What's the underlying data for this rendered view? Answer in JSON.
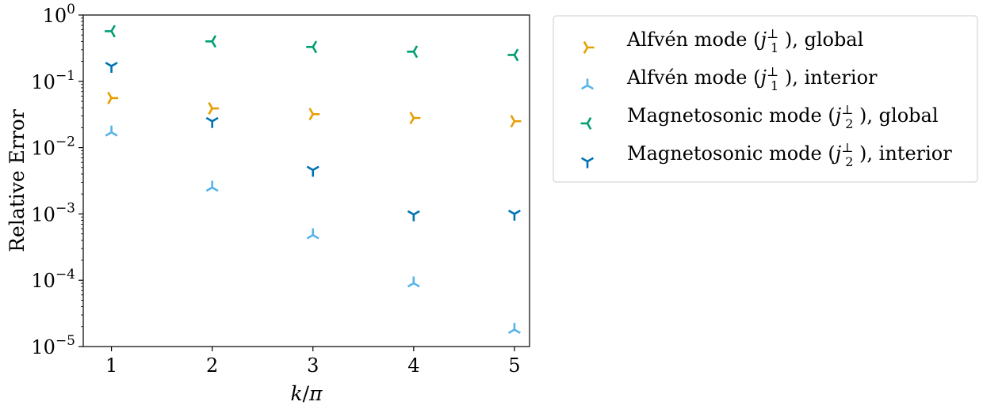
{
  "chart_data": {
    "type": "scatter",
    "xlabel": "k/π",
    "ylabel": "Relative Error",
    "xlim": [
      0.72,
      5.15
    ],
    "ylim": [
      1e-05,
      1
    ],
    "yscale": "log",
    "x_ticks": [
      1,
      2,
      3,
      4,
      5
    ],
    "y_ticks": [
      {
        "value": 1,
        "base": "10",
        "exp": "0"
      },
      {
        "value": 0.1,
        "base": "10",
        "exp": "−1"
      },
      {
        "value": 0.01,
        "base": "10",
        "exp": "−2"
      },
      {
        "value": 0.001,
        "base": "10",
        "exp": "−3"
      },
      {
        "value": 0.0001,
        "base": "10",
        "exp": "−4"
      },
      {
        "value": 1e-05,
        "base": "10",
        "exp": "−5"
      }
    ],
    "grid": false,
    "legend_position": "outside-right-top",
    "series": [
      {
        "name": "Alfvén mode (j₁^⊥), global",
        "legend": {
          "pre": "Alfvén mode (",
          "sub": "1",
          "post": " ), global"
        },
        "marker": "tri-right",
        "color": "#E69F00",
        "x": [
          1,
          2,
          3,
          4,
          5
        ],
        "y": [
          0.056,
          0.039,
          0.032,
          0.028,
          0.025
        ]
      },
      {
        "name": "Alfvén mode (j₁^⊥), interior",
        "legend": {
          "pre": "Alfvén mode (",
          "sub": "1",
          "post": " ), interior"
        },
        "marker": "tri-up",
        "color": "#56B4E9",
        "x": [
          1,
          2,
          3,
          4,
          5
        ],
        "y": [
          0.017,
          0.0025,
          0.00048,
          9e-05,
          1.8e-05
        ]
      },
      {
        "name": "Magnetosonic mode (j₂^⊥), global",
        "legend": {
          "pre": "Magnetosonic mode (",
          "sub": "2",
          "post": " ), global"
        },
        "marker": "tri-left",
        "color": "#009E73",
        "x": [
          1,
          2,
          3,
          4,
          5
        ],
        "y": [
          0.57,
          0.4,
          0.33,
          0.28,
          0.25
        ]
      },
      {
        "name": "Magnetosonic mode (j₂^⊥), interior",
        "legend": {
          "pre": "Magnetosonic mode (",
          "sub": "2",
          "post": " ), interior"
        },
        "marker": "tri-down",
        "color": "#0072B2",
        "x": [
          1,
          2,
          3,
          4,
          5
        ],
        "y": [
          0.17,
          0.025,
          0.0046,
          0.00098,
          0.001
        ]
      }
    ]
  }
}
